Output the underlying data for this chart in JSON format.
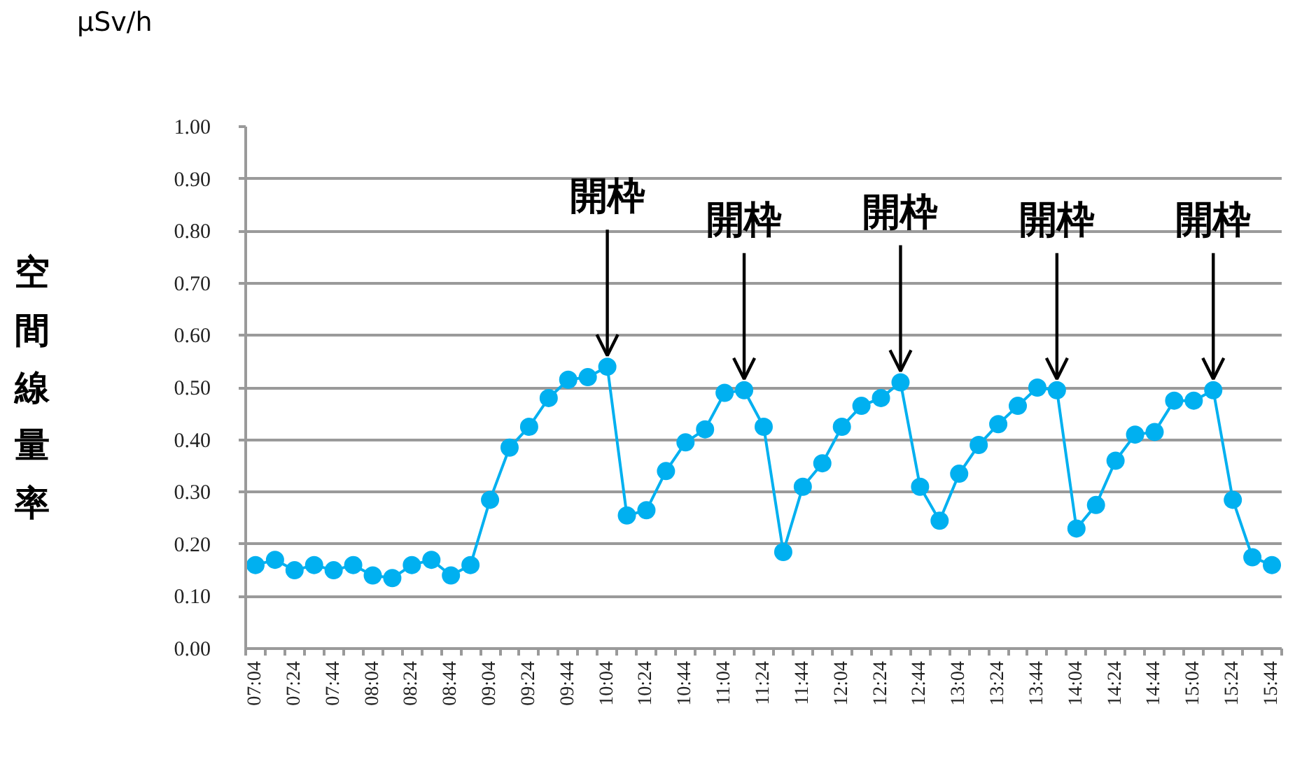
{
  "chart_data": {
    "type": "line",
    "ylabel": "空間線量率",
    "annotations": [
      "μSv/h",
      {
        "text": "開枠",
        "x": 10.0667,
        "y": 0.54
      },
      {
        "text": "開枠",
        "x": 11.2333,
        "y": 0.495
      },
      {
        "text": "開枠",
        "x": 12.5667,
        "y": 0.51
      },
      {
        "text": "開枠",
        "x": 13.9,
        "y": 0.495
      },
      {
        "text": "開枠",
        "x": 15.2333,
        "y": 0.495
      }
    ],
    "x": [
      7.0667,
      7.2333,
      7.4,
      7.5667,
      7.7333,
      7.9,
      8.0667,
      8.2333,
      8.4,
      8.5667,
      8.7333,
      8.9,
      9.0667,
      9.2333,
      9.4,
      9.5667,
      9.7333,
      9.9,
      10.0667,
      10.2333,
      10.4,
      10.5667,
      10.7333,
      10.9,
      11.0667,
      11.2333,
      11.4,
      11.5667,
      11.7333,
      11.9,
      12.0667,
      12.2333,
      12.4,
      12.5667,
      12.7333,
      12.9,
      13.0667,
      13.2333,
      13.4,
      13.5667,
      13.7333,
      13.9,
      14.0667,
      14.2333,
      14.4,
      14.5667,
      14.7333,
      14.9,
      15.0667,
      15.2333,
      15.4,
      15.5667,
      15.7333
    ],
    "series": [
      {
        "color": "#00b0f0",
        "values": [
          0.16,
          0.17,
          0.15,
          0.16,
          0.15,
          0.16,
          0.14,
          0.135,
          0.16,
          0.17,
          0.14,
          0.16,
          0.285,
          0.385,
          0.425,
          0.48,
          0.515,
          0.52,
          0.54,
          0.255,
          0.265,
          0.34,
          0.395,
          0.42,
          0.49,
          0.495,
          0.425,
          0.185,
          0.31,
          0.355,
          0.425,
          0.465,
          0.48,
          0.51,
          0.31,
          0.245,
          0.335,
          0.39,
          0.43,
          0.465,
          0.5,
          0.495,
          0.23,
          0.275,
          0.36,
          0.41,
          0.415,
          0.475,
          0.475,
          0.495,
          0.285,
          0.175,
          0.16
        ]
      }
    ],
    "xlim": [
      6.9833,
      15.8167
    ],
    "ylim": [
      0,
      1
    ],
    "xticks": [
      {
        "value": 7.0667,
        "label": "07:04"
      },
      {
        "value": 7.4,
        "label": "07:24"
      },
      {
        "value": 7.7333,
        "label": "07:44"
      },
      {
        "value": 8.0667,
        "label": "08:04"
      },
      {
        "value": 8.4,
        "label": "08:24"
      },
      {
        "value": 8.7333,
        "label": "08:44"
      },
      {
        "value": 9.0667,
        "label": "09:04"
      },
      {
        "value": 9.4,
        "label": "09:24"
      },
      {
        "value": 9.7333,
        "label": "09:44"
      },
      {
        "value": 10.0667,
        "label": "10:04"
      },
      {
        "value": 10.4,
        "label": "10:24"
      },
      {
        "value": 10.7333,
        "label": "10:44"
      },
      {
        "value": 11.0667,
        "label": "11:04"
      },
      {
        "value": 11.4,
        "label": "11:24"
      },
      {
        "value": 11.7333,
        "label": "11:44"
      },
      {
        "value": 12.0667,
        "label": "12:04"
      },
      {
        "value": 12.4,
        "label": "12:24"
      },
      {
        "value": 12.7333,
        "label": "12:44"
      },
      {
        "value": 13.0667,
        "label": "13:04"
      },
      {
        "value": 13.4,
        "label": "13:24"
      },
      {
        "value": 13.7333,
        "label": "13:44"
      },
      {
        "value": 14.0667,
        "label": "14:04"
      },
      {
        "value": 14.4,
        "label": "14:24"
      },
      {
        "value": 14.7333,
        "label": "14:44"
      },
      {
        "value": 15.0667,
        "label": "15:04"
      },
      {
        "value": 15.4,
        "label": "15:24"
      },
      {
        "value": 15.7333,
        "label": "15:44"
      },
      {
        "value": 6.9833,
        "label": null
      },
      {
        "value": 7.15,
        "label": null
      },
      {
        "value": 7.3167,
        "label": null
      },
      {
        "value": 7.4833,
        "label": null
      },
      {
        "value": 7.65,
        "label": null
      },
      {
        "value": 7.8167,
        "label": null
      },
      {
        "value": 7.9833,
        "label": null
      },
      {
        "value": 8.15,
        "label": null
      },
      {
        "value": 8.3167,
        "label": null
      },
      {
        "value": 8.4833,
        "label": null
      },
      {
        "value": 8.65,
        "label": null
      },
      {
        "value": 8.8167,
        "label": null
      },
      {
        "value": 8.9833,
        "label": null
      },
      {
        "value": 9.15,
        "label": null
      },
      {
        "value": 9.3167,
        "label": null
      },
      {
        "value": 9.4833,
        "label": null
      },
      {
        "value": 9.65,
        "label": null
      },
      {
        "value": 9.8167,
        "label": null
      },
      {
        "value": 9.9833,
        "label": null
      },
      {
        "value": 10.15,
        "label": null
      },
      {
        "value": 10.3167,
        "label": null
      },
      {
        "value": 10.4833,
        "label": null
      },
      {
        "value": 10.65,
        "label": null
      },
      {
        "value": 10.8167,
        "label": null
      },
      {
        "value": 10.9833,
        "label": null
      },
      {
        "value": 11.15,
        "label": null
      },
      {
        "value": 11.3167,
        "label": null
      },
      {
        "value": 11.4833,
        "label": null
      },
      {
        "value": 11.65,
        "label": null
      },
      {
        "value": 11.8167,
        "label": null
      },
      {
        "value": 11.9833,
        "label": null
      },
      {
        "value": 12.15,
        "label": null
      },
      {
        "value": 12.3167,
        "label": null
      },
      {
        "value": 12.4833,
        "label": null
      },
      {
        "value": 12.65,
        "label": null
      },
      {
        "value": 12.8167,
        "label": null
      },
      {
        "value": 12.9833,
        "label": null
      },
      {
        "value": 13.15,
        "label": null
      },
      {
        "value": 13.3167,
        "label": null
      },
      {
        "value": 13.4833,
        "label": null
      },
      {
        "value": 13.65,
        "label": null
      },
      {
        "value": 13.8167,
        "label": null
      },
      {
        "value": 13.9833,
        "label": null
      },
      {
        "value": 14.15,
        "label": null
      },
      {
        "value": 14.3167,
        "label": null
      },
      {
        "value": 14.4833,
        "label": null
      },
      {
        "value": 14.65,
        "label": null
      },
      {
        "value": 14.8167,
        "label": null
      },
      {
        "value": 14.9833,
        "label": null
      },
      {
        "value": 15.15,
        "label": null
      },
      {
        "value": 15.3167,
        "label": null
      },
      {
        "value": 15.4833,
        "label": null
      },
      {
        "value": 15.65,
        "label": null
      },
      {
        "value": 15.8167,
        "label": null
      }
    ],
    "yticks": [
      {
        "value": 0,
        "label": "0.00"
      },
      {
        "value": 0.1,
        "label": "0.10"
      },
      {
        "value": 0.2,
        "label": "0.20"
      },
      {
        "value": 0.3,
        "label": "0.30"
      },
      {
        "value": 0.4,
        "label": "0.40"
      },
      {
        "value": 0.5,
        "label": "0.50"
      },
      {
        "value": 0.6,
        "label": "0.60"
      },
      {
        "value": 0.7,
        "label": "0.70"
      },
      {
        "value": 0.8,
        "label": "0.80"
      },
      {
        "value": 0.9,
        "label": "0.90"
      },
      {
        "value": 1,
        "label": "1.00"
      }
    ],
    "grid": "y",
    "marker": "circle",
    "line_style": "solid"
  }
}
